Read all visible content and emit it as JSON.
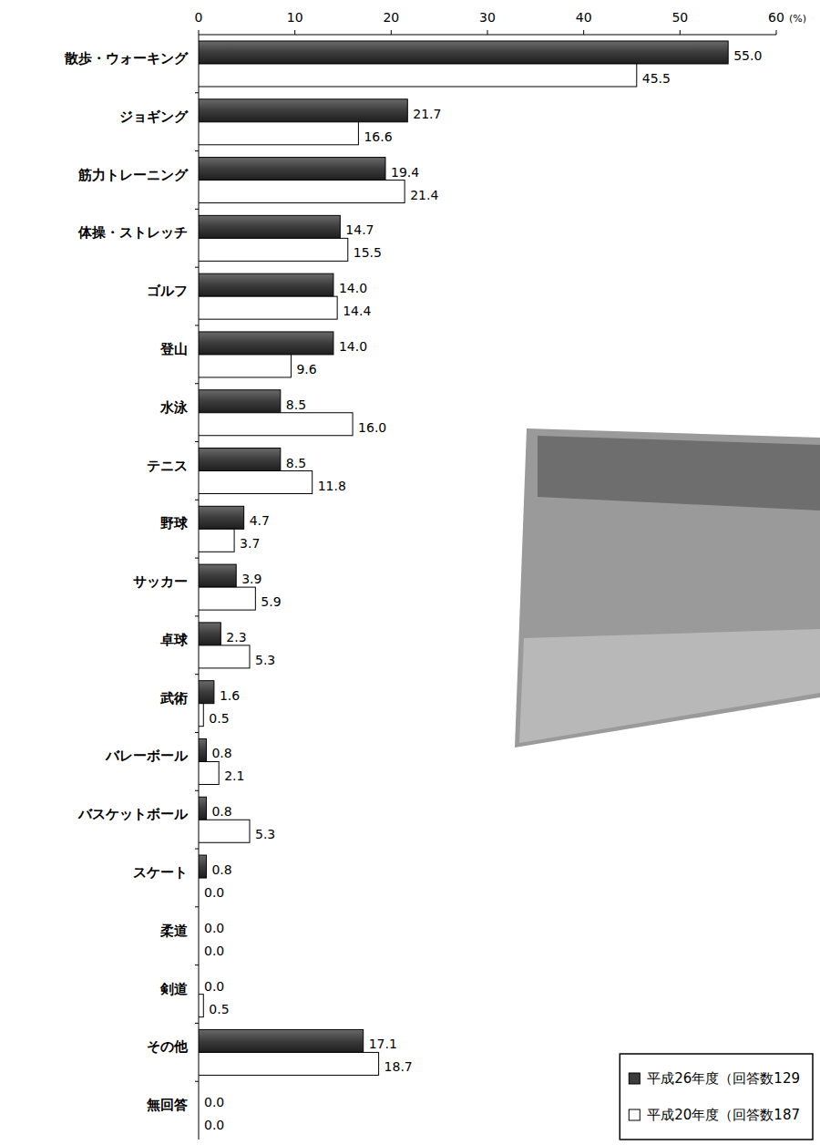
{
  "chart_data": {
    "type": "bar",
    "orientation": "horizontal",
    "xlabel": "(%)",
    "categories": [
      "散歩・ウォーキング",
      "ジョギング",
      "筋力トレーニング",
      "体操・ストレッチ",
      "ゴルフ",
      "登山",
      "水泳",
      "テニス",
      "野球",
      "サッカー",
      "卓球",
      "武術",
      "バレーボール",
      "バスケットボール",
      "スケート",
      "柔道",
      "剣道",
      "その他",
      "無回答"
    ],
    "series": [
      {
        "name": "平成26年度（回答数129",
        "color": "#3c3c3c",
        "values": [
          55.0,
          21.7,
          19.4,
          14.7,
          14.0,
          14.0,
          8.5,
          8.5,
          4.7,
          3.9,
          2.3,
          1.6,
          0.8,
          0.8,
          0.8,
          0.0,
          0.0,
          17.1,
          0.0
        ],
        "value_labels": [
          "55.0",
          "21.7",
          "19.4",
          "14.7",
          "14.0",
          "14.0",
          "8.5",
          "8.5",
          "4.7",
          "3.9",
          "2.3",
          "1.6",
          "0.8",
          "0.8",
          "0.8",
          "0.0",
          "0.0",
          "17.1",
          "0.0"
        ]
      },
      {
        "name": "平成20年度（回答数187",
        "color": "#ffffff",
        "values": [
          45.5,
          16.6,
          21.4,
          15.5,
          14.4,
          9.6,
          16.0,
          11.8,
          3.7,
          5.9,
          5.3,
          0.5,
          2.1,
          5.3,
          0.0,
          0.0,
          0.5,
          18.7,
          0.0
        ],
        "value_labels": [
          "45.5",
          "16.6",
          "21.4",
          "15.5",
          "14.4",
          "9.6",
          "16.0",
          "11.8",
          "3.7",
          "5.9",
          "5.3",
          "0.5",
          "2.1",
          "5.3",
          "0.0",
          "0.0",
          "0.5",
          "18.7",
          "0.0"
        ]
      }
    ],
    "xlim": [
      0,
      60
    ],
    "xticks": [
      0,
      10,
      20,
      30,
      40,
      50,
      60
    ],
    "grid": false,
    "legend": "bottom-right",
    "data_labels": true
  }
}
